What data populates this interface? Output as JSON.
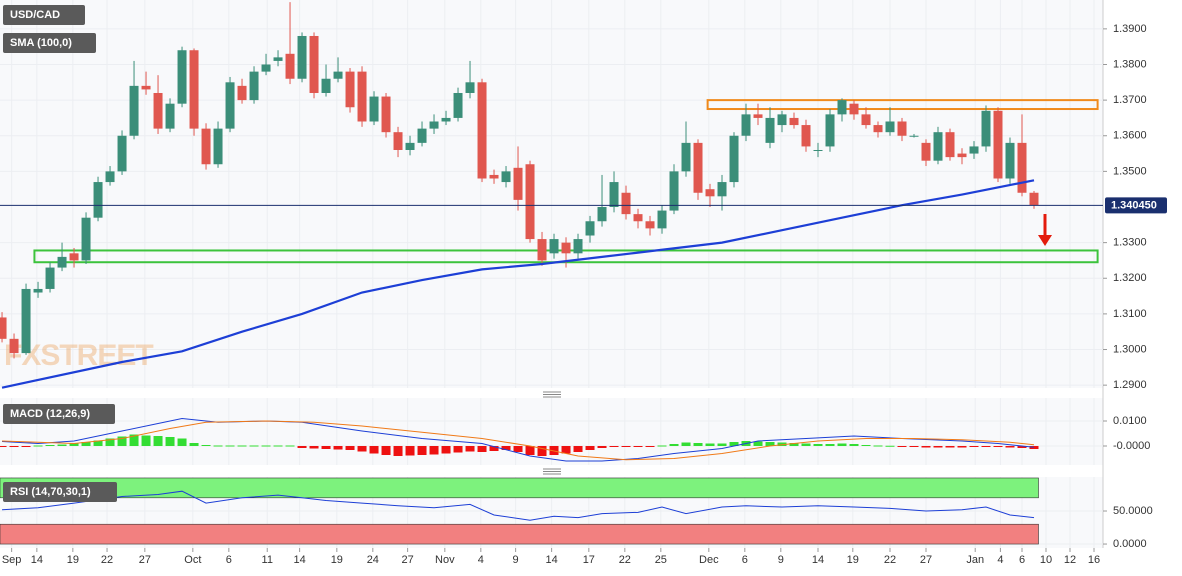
{
  "chart_data": {
    "type": "candlestick",
    "title": "USD/CAD",
    "watermark": "FXSTREET",
    "up_color": "#3b8e79",
    "down_color": "#e0574f",
    "grid": true,
    "xlim": [
      -0.17,
      91.75
    ],
    "xticks": [
      {
        "value": 0.8,
        "label": "Sep"
      },
      {
        "value": 2.9,
        "label": "14"
      },
      {
        "value": 5.9,
        "label": "19"
      },
      {
        "value": 8.75,
        "label": "22"
      },
      {
        "value": 11.9,
        "label": "27"
      },
      {
        "value": 15.9,
        "label": "Oct"
      },
      {
        "value": 18.9,
        "label": "6"
      },
      {
        "value": 22.1,
        "label": "11"
      },
      {
        "value": 24.8,
        "label": "14"
      },
      {
        "value": 27.9,
        "label": "19"
      },
      {
        "value": 30.9,
        "label": "24"
      },
      {
        "value": 33.8,
        "label": "27"
      },
      {
        "value": 36.9,
        "label": "Nov"
      },
      {
        "value": 39.9,
        "label": "4"
      },
      {
        "value": 42.8,
        "label": "9"
      },
      {
        "value": 45.8,
        "label": "14"
      },
      {
        "value": 48.9,
        "label": "17"
      },
      {
        "value": 51.9,
        "label": "22"
      },
      {
        "value": 54.9,
        "label": "25"
      },
      {
        "value": 58.9,
        "label": "Dec"
      },
      {
        "value": 61.9,
        "label": "6"
      },
      {
        "value": 64.9,
        "label": "9"
      },
      {
        "value": 68.0,
        "label": "14"
      },
      {
        "value": 70.9,
        "label": "19"
      },
      {
        "value": 74.0,
        "label": "22"
      },
      {
        "value": 77.0,
        "label": "27"
      },
      {
        "value": 81.1,
        "label": "Jan"
      },
      {
        "value": 83.2,
        "label": "4"
      },
      {
        "value": 85.0,
        "label": "6"
      },
      {
        "value": 87.0,
        "label": "10"
      },
      {
        "value": 89.0,
        "label": "12"
      },
      {
        "value": 91.0,
        "label": "16"
      }
    ],
    "ylim": [
      1.2892,
      1.3981
    ],
    "yticks": [
      {
        "value": 1.39,
        "label": "1.3900"
      },
      {
        "value": 1.38,
        "label": "1.3800"
      },
      {
        "value": 1.37,
        "label": "1.3700"
      },
      {
        "value": 1.36,
        "label": "1.3600"
      },
      {
        "value": 1.35,
        "label": "1.3500"
      },
      {
        "value": 1.33,
        "label": "1.3300"
      },
      {
        "value": 1.32,
        "label": "1.3200"
      },
      {
        "value": 1.31,
        "label": "1.3100"
      },
      {
        "value": 1.3,
        "label": "1.3000"
      },
      {
        "value": 1.29,
        "label": "1.2900"
      }
    ],
    "open": [
      1.309,
      1.303,
      1.299,
      1.316,
      1.317,
      1.323,
      1.327,
      1.325,
      1.337,
      1.347,
      1.35,
      1.36,
      1.374,
      1.372,
      1.362,
      1.369,
      1.384,
      1.362,
      1.352,
      1.362,
      1.374,
      1.37,
      1.378,
      1.381,
      1.383,
      1.376,
      1.388,
      1.372,
      1.376,
      1.378,
      1.378,
      1.364,
      1.371,
      1.361,
      1.356,
      1.358,
      1.362,
      1.364,
      1.365,
      1.372,
      1.375,
      1.349,
      1.347,
      1.351,
      1.352,
      1.331,
      1.327,
      1.33,
      1.327,
      1.332,
      1.336,
      1.34,
      1.344,
      1.338,
      1.336,
      1.334,
      1.339,
      1.35,
      1.358,
      1.345,
      1.343,
      1.347,
      1.36,
      1.366,
      1.358,
      1.363,
      1.365,
      1.363,
      1.356,
      1.357,
      1.366,
      1.369,
      1.366,
      1.363,
      1.361,
      1.364,
      1.36,
      1.358,
      1.353,
      1.361,
      1.355,
      1.355,
      1.357,
      1.367,
      1.348,
      1.358,
      1.344
    ],
    "high": [
      1.3105,
      1.3045,
      1.3185,
      1.319,
      1.3245,
      1.33,
      1.3285,
      1.3385,
      1.3485,
      1.3515,
      1.3615,
      1.381,
      1.378,
      1.377,
      1.3705,
      1.385,
      1.3845,
      1.3635,
      1.364,
      1.3765,
      1.376,
      1.3795,
      1.383,
      1.384,
      1.3975,
      1.389,
      1.389,
      1.38,
      1.382,
      1.379,
      1.3795,
      1.3725,
      1.372,
      1.3625,
      1.36,
      1.364,
      1.366,
      1.367,
      1.3735,
      1.381,
      1.376,
      1.3505,
      1.3515,
      1.357,
      1.353,
      1.333,
      1.3325,
      1.3315,
      1.3325,
      1.3375,
      1.349,
      1.35,
      1.346,
      1.3395,
      1.3375,
      1.3405,
      1.352,
      1.364,
      1.359,
      1.3465,
      1.349,
      1.361,
      1.369,
      1.369,
      1.368,
      1.367,
      1.3665,
      1.3645,
      1.358,
      1.3675,
      1.3705,
      1.37,
      1.368,
      1.364,
      1.368,
      1.365,
      1.3605,
      1.359,
      1.3625,
      1.362,
      1.3565,
      1.3585,
      1.3685,
      1.368,
      1.3595,
      1.366,
      1.3445
    ],
    "low": [
      1.302,
      1.2975,
      1.2985,
      1.3145,
      1.316,
      1.322,
      1.323,
      1.324,
      1.336,
      1.346,
      1.349,
      1.359,
      1.3715,
      1.3605,
      1.361,
      1.368,
      1.36,
      1.3505,
      1.351,
      1.361,
      1.369,
      1.369,
      1.377,
      1.3795,
      1.3745,
      1.375,
      1.3705,
      1.371,
      1.375,
      1.3665,
      1.3625,
      1.363,
      1.3595,
      1.354,
      1.3545,
      1.357,
      1.3605,
      1.363,
      1.364,
      1.3705,
      1.347,
      1.3465,
      1.3455,
      1.339,
      1.33,
      1.3235,
      1.3255,
      1.323,
      1.3255,
      1.33,
      1.3345,
      1.3385,
      1.3365,
      1.334,
      1.332,
      1.3325,
      1.338,
      1.3485,
      1.342,
      1.34,
      1.339,
      1.3455,
      1.3585,
      1.363,
      1.3565,
      1.361,
      1.362,
      1.3555,
      1.354,
      1.3555,
      1.364,
      1.3645,
      1.362,
      1.3595,
      1.36,
      1.3585,
      1.3595,
      1.3515,
      1.352,
      1.353,
      1.352,
      1.3535,
      1.3555,
      1.347,
      1.3465,
      1.343,
      1.3395
    ],
    "close": [
      1.303,
      1.299,
      1.317,
      1.317,
      1.323,
      1.326,
      1.325,
      1.337,
      1.347,
      1.35,
      1.36,
      1.374,
      1.373,
      1.362,
      1.369,
      1.384,
      1.362,
      1.352,
      1.362,
      1.375,
      1.37,
      1.378,
      1.38,
      1.382,
      1.376,
      1.388,
      1.372,
      1.376,
      1.378,
      1.368,
      1.364,
      1.371,
      1.361,
      1.356,
      1.358,
      1.362,
      1.364,
      1.365,
      1.372,
      1.375,
      1.348,
      1.348,
      1.35,
      1.342,
      1.331,
      1.325,
      1.331,
      1.327,
      1.331,
      1.336,
      1.34,
      1.347,
      1.338,
      1.336,
      1.334,
      1.339,
      1.35,
      1.358,
      1.344,
      1.343,
      1.347,
      1.36,
      1.366,
      1.365,
      1.365,
      1.366,
      1.363,
      1.357,
      1.356,
      1.366,
      1.37,
      1.366,
      1.363,
      1.361,
      1.364,
      1.36,
      1.36,
      1.353,
      1.361,
      1.354,
      1.354,
      1.357,
      1.367,
      1.348,
      1.358,
      1.344,
      1.34045
    ],
    "last_price": {
      "value": 1.34045,
      "label": "1.340450"
    },
    "zones": [
      {
        "color": "#f08a1c",
        "x": [
          58.8,
          91.3
        ],
        "y": [
          1.3675,
          1.37
        ]
      },
      {
        "color": "#3cc33c",
        "x": [
          2.7,
          91.3
        ],
        "y": [
          1.3245,
          1.3278
        ]
      }
    ],
    "sma": {
      "name": "SMA (100,0)",
      "color": "#1d3fd6",
      "x": [
        0,
        10,
        15,
        20,
        25,
        30,
        35,
        40,
        45,
        50,
        55,
        60,
        65,
        70,
        75,
        80,
        86
      ],
      "values": [
        1.2893,
        1.2965,
        1.2995,
        1.305,
        1.31,
        1.316,
        1.3195,
        1.3225,
        1.324,
        1.326,
        1.328,
        1.33,
        1.3335,
        1.337,
        1.3405,
        1.3435,
        1.3475
      ]
    },
    "macd": {
      "name": "MACD (12,26,9)",
      "ylim": [
        -0.0076,
        0.0192
      ],
      "yticks": [
        {
          "value": 0.01,
          "label": "0.0100"
        },
        {
          "value": 0,
          "label": "-0.0000"
        }
      ],
      "histogram": [
        -0.0002,
        -0.0003,
        -0.0002,
        0.0002,
        0.0004,
        0.0006,
        0.001,
        0.0016,
        0.0022,
        0.003,
        0.0038,
        0.0046,
        0.0042,
        0.004,
        0.0036,
        0.003,
        0.0012,
        0.0004,
        0.0002,
        0.0002,
        0.0002,
        0.0002,
        0.0002,
        0.0002,
        0.0002,
        -0.0008,
        -0.001,
        -0.0012,
        -0.0014,
        -0.0016,
        -0.0022,
        -0.003,
        -0.0036,
        -0.004,
        -0.0038,
        -0.0036,
        -0.0034,
        -0.003,
        -0.0026,
        -0.0022,
        -0.0024,
        -0.002,
        -0.0016,
        -0.0024,
        -0.0036,
        -0.004,
        -0.0036,
        -0.003,
        -0.0024,
        -0.0016,
        -0.0008,
        -0.0002,
        -0.0001,
        -0.0001,
        -0.0001,
        0.0002,
        0.0008,
        0.0014,
        0.0012,
        0.001,
        0.001,
        0.0016,
        0.002,
        0.0018,
        0.0016,
        0.0014,
        0.0012,
        0.001,
        0.0008,
        0.0008,
        0.001,
        0.0008,
        0.0004,
        0.0002,
        0.0001,
        -0.0002,
        -0.0003,
        -0.0006,
        -0.0006,
        -0.0006,
        -0.0006,
        -0.0004,
        -0.0004,
        -0.0004,
        -0.0006,
        -0.0008,
        -0.0012
      ],
      "pos_color": "#33dd33",
      "neg_color": "#ee1111",
      "lines": [
        {
          "color": "#1d3fd6",
          "x": [
            0,
            3,
            6,
            10,
            13,
            15,
            18,
            22,
            25,
            30,
            35,
            40,
            44,
            47,
            50,
            53,
            56,
            60,
            63,
            67,
            71,
            75,
            80,
            83,
            86
          ],
          "values": [
            0.0018,
            0.001,
            0.002,
            0.006,
            0.009,
            0.011,
            0.0095,
            0.01,
            0.0095,
            0.006,
            0.003,
            0.001,
            -0.004,
            -0.006,
            -0.006,
            -0.005,
            -0.003,
            -0.001,
            0.002,
            0.003,
            0.004,
            0.003,
            0.002,
            0.001,
            -0.0005
          ]
        },
        {
          "color": "#f07a18",
          "x": [
            0,
            6,
            10,
            14,
            17,
            22,
            26,
            30,
            35,
            40,
            44,
            48,
            52,
            56,
            60,
            64,
            68,
            72,
            76,
            80,
            84,
            86
          ],
          "values": [
            0.002,
            0.001,
            0.003,
            0.007,
            0.0095,
            0.01,
            0.0095,
            0.008,
            0.0055,
            0.003,
            0,
            -0.004,
            -0.0055,
            -0.005,
            -0.003,
            0,
            0.002,
            0.003,
            0.003,
            0.0025,
            0.0015,
            0.0005
          ]
        }
      ]
    },
    "rsi": {
      "name": "RSI (14,70,30,1)",
      "ylim": [
        -6,
        101.5
      ],
      "yticks": [
        {
          "value": 50,
          "label": "50.0000"
        },
        {
          "value": 0,
          "label": "0.0000"
        }
      ],
      "overbought": [
        70,
        100
      ],
      "oversold": [
        0,
        30
      ],
      "overbought_color": "#7df27d",
      "oversold_color": "#f28080",
      "color": "#1d3fd6",
      "x": [
        0,
        3,
        6,
        10,
        13,
        15,
        17,
        20,
        23,
        25,
        27,
        30,
        33,
        36,
        39,
        41,
        44,
        46,
        48,
        50,
        53,
        55,
        57,
        60,
        62,
        65,
        68,
        71,
        74,
        77,
        80,
        82,
        84,
        86
      ],
      "values": [
        52,
        55,
        62,
        72,
        75,
        80,
        62,
        70,
        74,
        70,
        66,
        62,
        58,
        55,
        60,
        44,
        36,
        42,
        40,
        46,
        48,
        56,
        46,
        56,
        58,
        56,
        58,
        56,
        54,
        50,
        52,
        56,
        44,
        40
      ]
    }
  }
}
